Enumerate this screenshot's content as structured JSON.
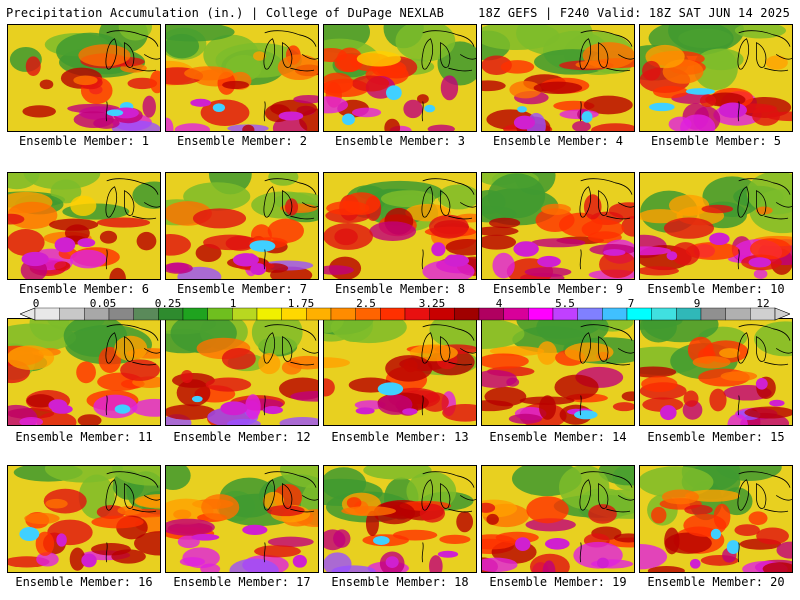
{
  "header": {
    "left": "Precipitation Accumulation (in.) | College of DuPage NEXLAB",
    "right": "18Z GEFS | F240 Valid: 18Z SAT JUN 14 2025"
  },
  "panels": [
    {
      "caption": "Ensemble Member: 1"
    },
    {
      "caption": "Ensemble Member: 2"
    },
    {
      "caption": "Ensemble Member: 3"
    },
    {
      "caption": "Ensemble Member: 4"
    },
    {
      "caption": "Ensemble Member: 5"
    },
    {
      "caption": "Ensemble Member: 6"
    },
    {
      "caption": "Ensemble Member: 7"
    },
    {
      "caption": "Ensemble Member: 8"
    },
    {
      "caption": "Ensemble Member: 9"
    },
    {
      "caption": "Ensemble Member: 10"
    },
    {
      "caption": "Ensemble Member: 11"
    },
    {
      "caption": "Ensemble Member: 12"
    },
    {
      "caption": "Ensemble Member: 13"
    },
    {
      "caption": "Ensemble Member: 14"
    },
    {
      "caption": "Ensemble Member: 15"
    },
    {
      "caption": "Ensemble Member: 16"
    },
    {
      "caption": "Ensemble Member: 17"
    },
    {
      "caption": "Ensemble Member: 18"
    },
    {
      "caption": "Ensemble Member: 19"
    },
    {
      "caption": "Ensemble Member: 20"
    }
  ],
  "legend": {
    "tick_labels": [
      "0",
      "0.05",
      "0.25",
      "1",
      "1.75",
      "2.5",
      "3.25",
      "4",
      "5.5",
      "7",
      "9",
      "12"
    ],
    "colors": [
      "#e8e8e8",
      "#c8c8c8",
      "#a8a8a8",
      "#888888",
      "#5a8a5a",
      "#2e8b2e",
      "#1fa31f",
      "#6fbf1f",
      "#b8d820",
      "#f0f000",
      "#ffd800",
      "#ffb000",
      "#ff8c00",
      "#ff6400",
      "#ff3000",
      "#e81010",
      "#c80000",
      "#a00000",
      "#b00060",
      "#d8009a",
      "#ff00ff",
      "#c040ff",
      "#8080ff",
      "#40c0ff",
      "#00ffff",
      "#40e0e0",
      "#30b8b8",
      "#909090",
      "#b0b0b0",
      "#d0d0d0"
    ]
  }
}
